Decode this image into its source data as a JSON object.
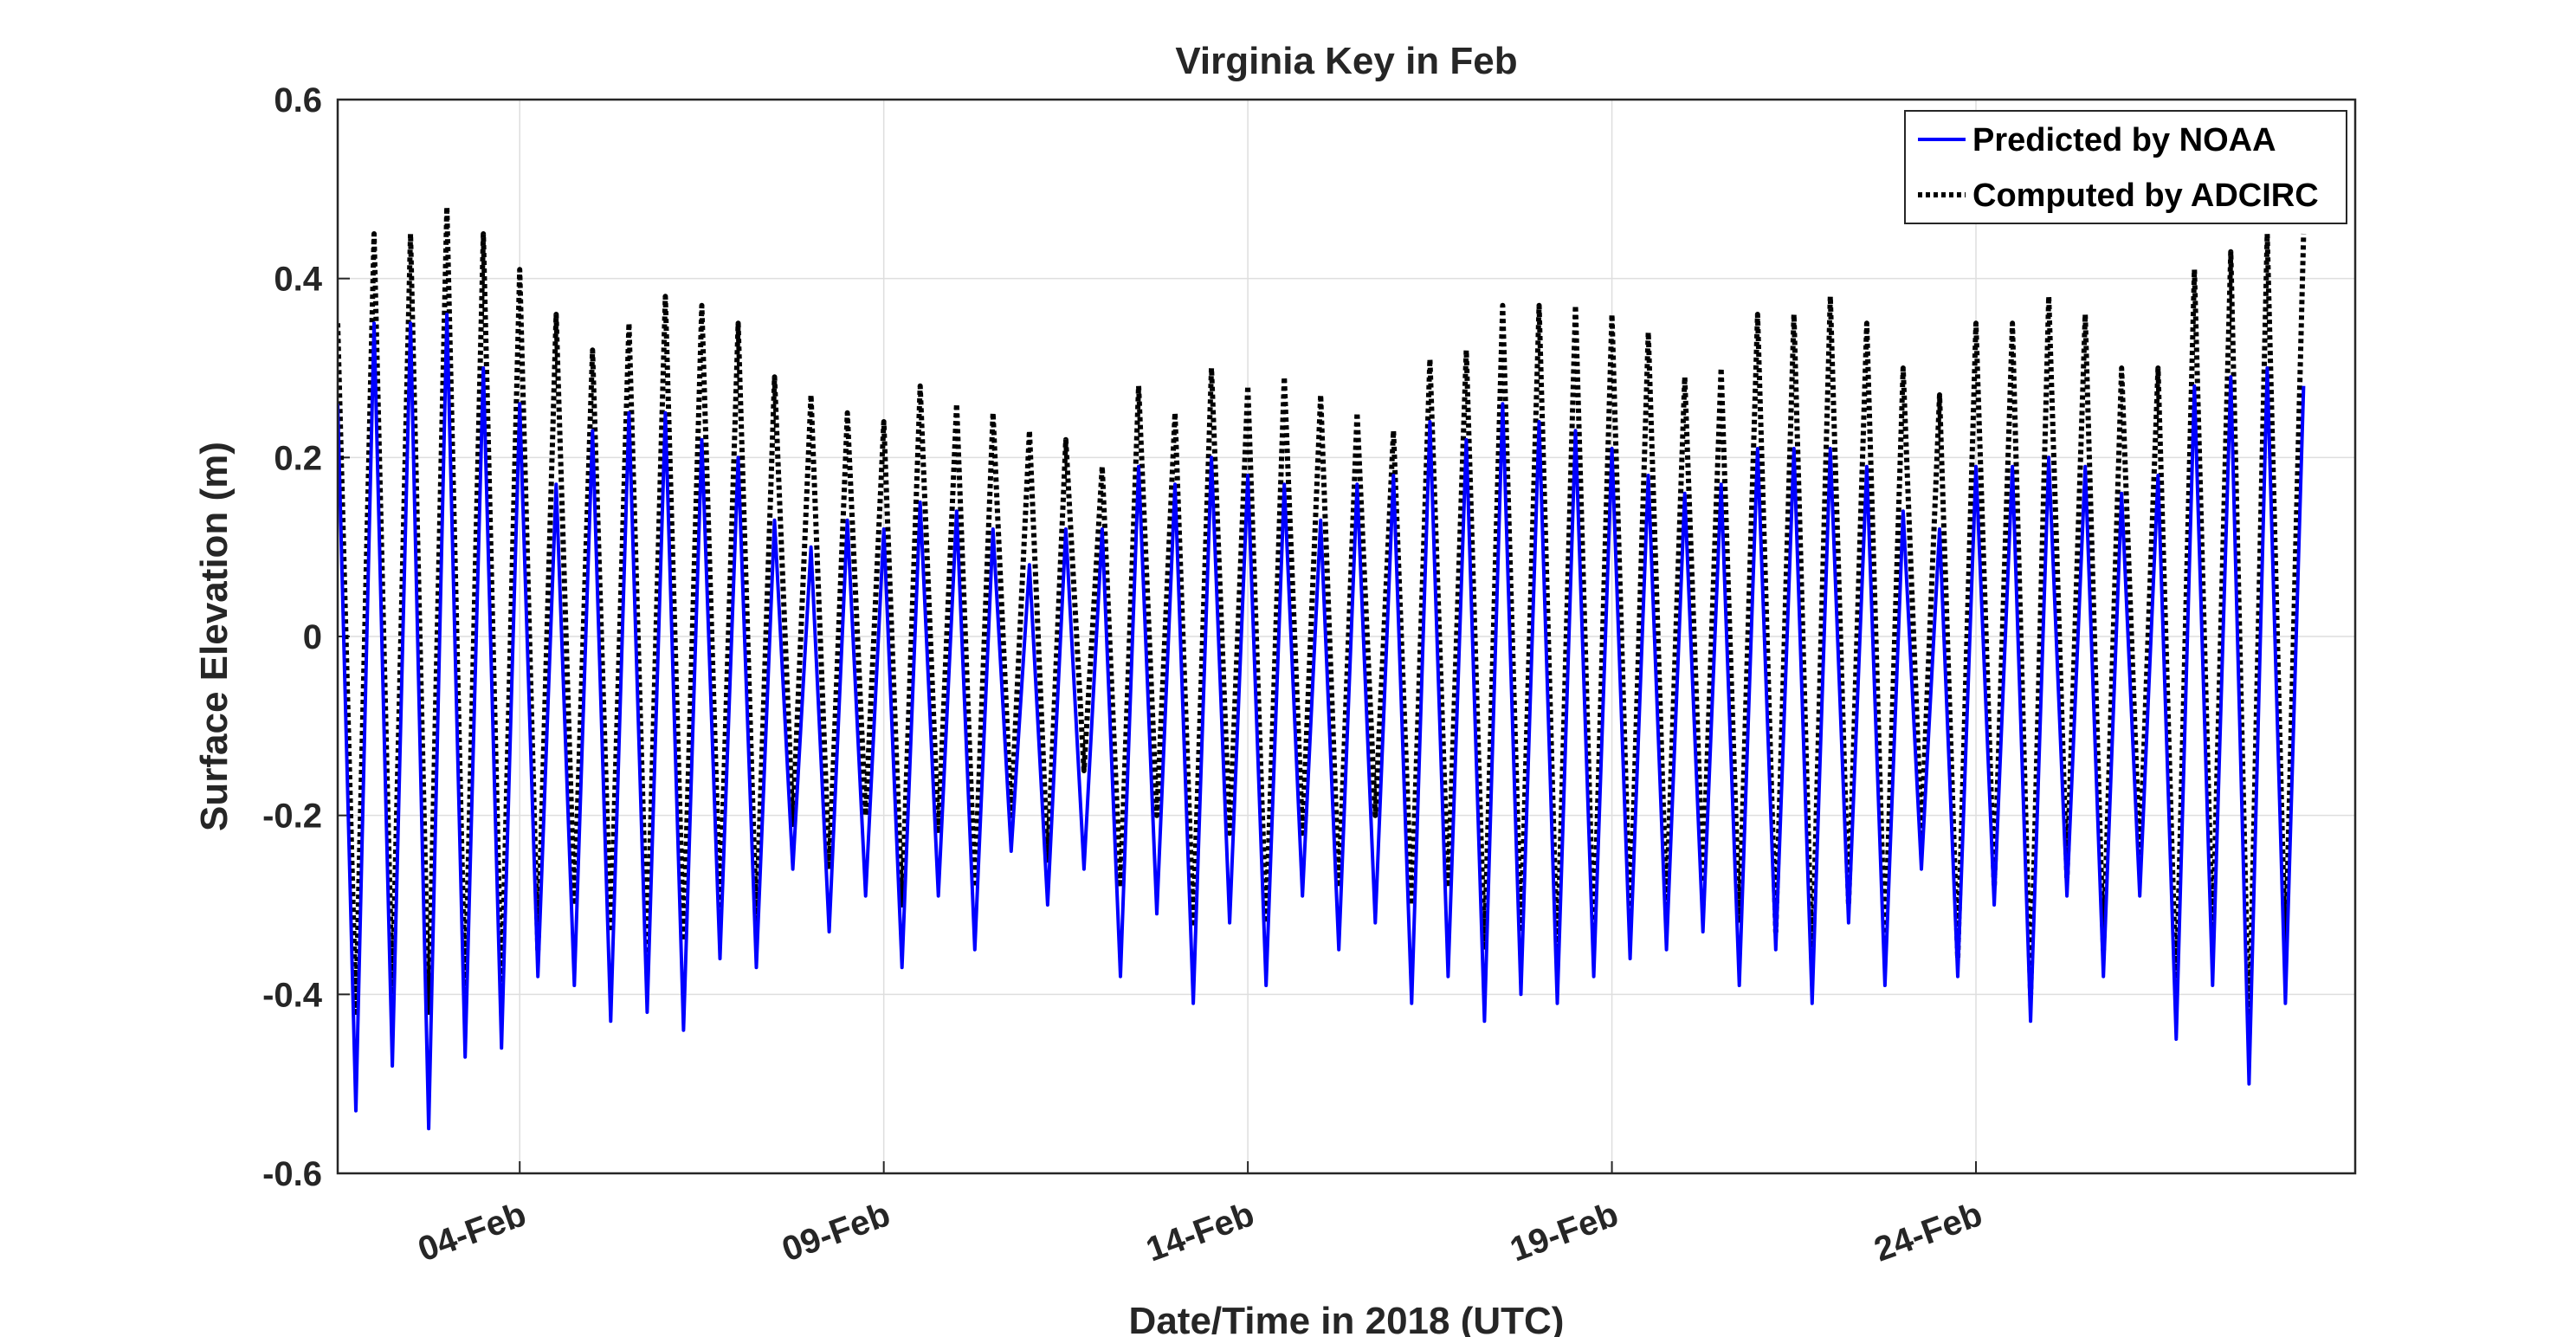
{
  "chart_data": {
    "type": "line",
    "title": "Virginia Key in Feb",
    "xlabel": "Date/Time in 2018 (UTC)",
    "ylabel": "Surface Elevation (m)",
    "xlim": [
      "2018-02-01T12:00",
      "2018-02-29T05:00"
    ],
    "ylim": [
      -0.6,
      0.6
    ],
    "x_ticks": [
      {
        "date": "2018-02-04",
        "label": "04-Feb"
      },
      {
        "date": "2018-02-09",
        "label": "09-Feb"
      },
      {
        "date": "2018-02-14",
        "label": "14-Feb"
      },
      {
        "date": "2018-02-19",
        "label": "19-Feb"
      },
      {
        "date": "2018-02-24",
        "label": "24-Feb"
      }
    ],
    "y_ticks": [
      -0.6,
      -0.4,
      -0.2,
      0,
      0.2,
      0.4,
      0.6
    ],
    "y_tick_labels": [
      "-0.6",
      "-0.4",
      "-0.2",
      "0",
      "0.2",
      "0.4",
      "0.6"
    ],
    "grid": true,
    "legend_position": "top-right",
    "series": [
      {
        "name": "Predicted by NOAA",
        "color": "#0000ff",
        "style": "solid",
        "peaks": [
          [
            "2018-02-01T12:00",
            0.26
          ],
          [
            "2018-02-01T18:00",
            -0.53
          ],
          [
            "2018-02-02T00:00",
            0.35
          ],
          [
            "2018-02-02T06:00",
            -0.48
          ],
          [
            "2018-02-02T12:00",
            0.35
          ],
          [
            "2018-02-02T18:00",
            -0.55
          ],
          [
            "2018-02-03T00:00",
            0.36
          ],
          [
            "2018-02-03T06:00",
            -0.47
          ],
          [
            "2018-02-03T12:00",
            0.3
          ],
          [
            "2018-02-03T18:00",
            -0.46
          ],
          [
            "2018-02-04T00:00",
            0.26
          ],
          [
            "2018-02-04T06:00",
            -0.38
          ],
          [
            "2018-02-04T12:00",
            0.17
          ],
          [
            "2018-02-04T18:00",
            -0.39
          ],
          [
            "2018-02-05T00:00",
            0.23
          ],
          [
            "2018-02-05T06:00",
            -0.43
          ],
          [
            "2018-02-05T12:00",
            0.25
          ],
          [
            "2018-02-05T18:00",
            -0.42
          ],
          [
            "2018-02-06T00:00",
            0.25
          ],
          [
            "2018-02-06T06:00",
            -0.44
          ],
          [
            "2018-02-06T12:00",
            0.22
          ],
          [
            "2018-02-06T18:00",
            -0.36
          ],
          [
            "2018-02-07T00:00",
            0.2
          ],
          [
            "2018-02-07T06:00",
            -0.37
          ],
          [
            "2018-02-07T12:00",
            0.13
          ],
          [
            "2018-02-07T18:00",
            -0.26
          ],
          [
            "2018-02-08T00:00",
            0.1
          ],
          [
            "2018-02-08T06:00",
            -0.33
          ],
          [
            "2018-02-08T12:00",
            0.13
          ],
          [
            "2018-02-08T18:00",
            -0.29
          ],
          [
            "2018-02-09T00:00",
            0.12
          ],
          [
            "2018-02-09T06:00",
            -0.37
          ],
          [
            "2018-02-09T12:00",
            0.15
          ],
          [
            "2018-02-09T18:00",
            -0.29
          ],
          [
            "2018-02-10T00:00",
            0.14
          ],
          [
            "2018-02-10T06:00",
            -0.35
          ],
          [
            "2018-02-10T12:00",
            0.12
          ],
          [
            "2018-02-10T18:00",
            -0.24
          ],
          [
            "2018-02-11T00:00",
            0.08
          ],
          [
            "2018-02-11T06:00",
            -0.3
          ],
          [
            "2018-02-11T12:00",
            0.12
          ],
          [
            "2018-02-11T18:00",
            -0.26
          ],
          [
            "2018-02-12T00:00",
            0.12
          ],
          [
            "2018-02-12T06:00",
            -0.38
          ],
          [
            "2018-02-12T12:00",
            0.19
          ],
          [
            "2018-02-12T18:00",
            -0.31
          ],
          [
            "2018-02-13T00:00",
            0.17
          ],
          [
            "2018-02-13T06:00",
            -0.41
          ],
          [
            "2018-02-13T12:00",
            0.2
          ],
          [
            "2018-02-13T18:00",
            -0.32
          ],
          [
            "2018-02-14T00:00",
            0.18
          ],
          [
            "2018-02-14T06:00",
            -0.39
          ],
          [
            "2018-02-14T12:00",
            0.17
          ],
          [
            "2018-02-14T18:00",
            -0.29
          ],
          [
            "2018-02-15T00:00",
            0.13
          ],
          [
            "2018-02-15T06:00",
            -0.35
          ],
          [
            "2018-02-15T12:00",
            0.17
          ],
          [
            "2018-02-15T18:00",
            -0.32
          ],
          [
            "2018-02-16T00:00",
            0.18
          ],
          [
            "2018-02-16T06:00",
            -0.41
          ],
          [
            "2018-02-16T12:00",
            0.24
          ],
          [
            "2018-02-16T18:00",
            -0.38
          ],
          [
            "2018-02-17T00:00",
            0.22
          ],
          [
            "2018-02-17T06:00",
            -0.43
          ],
          [
            "2018-02-17T12:00",
            0.26
          ],
          [
            "2018-02-17T18:00",
            -0.4
          ],
          [
            "2018-02-18T00:00",
            0.24
          ],
          [
            "2018-02-18T06:00",
            -0.41
          ],
          [
            "2018-02-18T12:00",
            0.23
          ],
          [
            "2018-02-18T18:00",
            -0.38
          ],
          [
            "2018-02-19T00:00",
            0.21
          ],
          [
            "2018-02-19T06:00",
            -0.36
          ],
          [
            "2018-02-19T12:00",
            0.18
          ],
          [
            "2018-02-19T18:00",
            -0.35
          ],
          [
            "2018-02-20T00:00",
            0.16
          ],
          [
            "2018-02-20T06:00",
            -0.33
          ],
          [
            "2018-02-20T12:00",
            0.17
          ],
          [
            "2018-02-20T18:00",
            -0.39
          ],
          [
            "2018-02-21T00:00",
            0.21
          ],
          [
            "2018-02-21T06:00",
            -0.35
          ],
          [
            "2018-02-21T12:00",
            0.21
          ],
          [
            "2018-02-21T18:00",
            -0.41
          ],
          [
            "2018-02-22T00:00",
            0.21
          ],
          [
            "2018-02-22T06:00",
            -0.32
          ],
          [
            "2018-02-22T12:00",
            0.19
          ],
          [
            "2018-02-22T18:00",
            -0.39
          ],
          [
            "2018-02-23T00:00",
            0.14
          ],
          [
            "2018-02-23T06:00",
            -0.26
          ],
          [
            "2018-02-23T12:00",
            0.12
          ],
          [
            "2018-02-23T18:00",
            -0.38
          ],
          [
            "2018-02-24T00:00",
            0.19
          ],
          [
            "2018-02-24T06:00",
            -0.3
          ],
          [
            "2018-02-24T12:00",
            0.19
          ],
          [
            "2018-02-24T18:00",
            -0.43
          ],
          [
            "2018-02-25T00:00",
            0.2
          ],
          [
            "2018-02-25T06:00",
            -0.29
          ],
          [
            "2018-02-25T12:00",
            0.19
          ],
          [
            "2018-02-25T18:00",
            -0.38
          ],
          [
            "2018-02-26T00:00",
            0.16
          ],
          [
            "2018-02-26T06:00",
            -0.29
          ],
          [
            "2018-02-26T12:00",
            0.18
          ],
          [
            "2018-02-26T18:00",
            -0.45
          ],
          [
            "2018-02-27T00:00",
            0.28
          ],
          [
            "2018-02-27T06:00",
            -0.39
          ],
          [
            "2018-02-27T12:00",
            0.29
          ],
          [
            "2018-02-27T18:00",
            -0.5
          ],
          [
            "2018-02-28T00:00",
            0.3
          ],
          [
            "2018-02-28T06:00",
            -0.41
          ],
          [
            "2018-02-28T12:00",
            0.28
          ]
        ]
      },
      {
        "name": "Computed by ADCIRC",
        "color": "#000000",
        "style": "dotted",
        "peaks": [
          [
            "2018-02-01T12:00",
            0.35
          ],
          [
            "2018-02-01T18:00",
            -0.42
          ],
          [
            "2018-02-02T00:00",
            0.45
          ],
          [
            "2018-02-02T06:00",
            -0.4
          ],
          [
            "2018-02-02T12:00",
            0.45
          ],
          [
            "2018-02-02T18:00",
            -0.42
          ],
          [
            "2018-02-03T00:00",
            0.48
          ],
          [
            "2018-02-03T06:00",
            -0.4
          ],
          [
            "2018-02-03T12:00",
            0.45
          ],
          [
            "2018-02-03T18:00",
            -0.4
          ],
          [
            "2018-02-04T00:00",
            0.41
          ],
          [
            "2018-02-04T06:00",
            -0.35
          ],
          [
            "2018-02-04T12:00",
            0.36
          ],
          [
            "2018-02-04T18:00",
            -0.3
          ],
          [
            "2018-02-05T00:00",
            0.32
          ],
          [
            "2018-02-05T06:00",
            -0.33
          ],
          [
            "2018-02-05T12:00",
            0.35
          ],
          [
            "2018-02-05T18:00",
            -0.35
          ],
          [
            "2018-02-06T00:00",
            0.38
          ],
          [
            "2018-02-06T06:00",
            -0.34
          ],
          [
            "2018-02-06T12:00",
            0.37
          ],
          [
            "2018-02-06T18:00",
            -0.3
          ],
          [
            "2018-02-07T00:00",
            0.35
          ],
          [
            "2018-02-07T06:00",
            -0.32
          ],
          [
            "2018-02-07T12:00",
            0.29
          ],
          [
            "2018-02-07T18:00",
            -0.21
          ],
          [
            "2018-02-08T00:00",
            0.27
          ],
          [
            "2018-02-08T06:00",
            -0.26
          ],
          [
            "2018-02-08T12:00",
            0.25
          ],
          [
            "2018-02-08T18:00",
            -0.2
          ],
          [
            "2018-02-09T00:00",
            0.24
          ],
          [
            "2018-02-09T06:00",
            -0.3
          ],
          [
            "2018-02-09T12:00",
            0.28
          ],
          [
            "2018-02-09T18:00",
            -0.22
          ],
          [
            "2018-02-10T00:00",
            0.26
          ],
          [
            "2018-02-10T06:00",
            -0.28
          ],
          [
            "2018-02-10T12:00",
            0.25
          ],
          [
            "2018-02-10T18:00",
            -0.2
          ],
          [
            "2018-02-11T00:00",
            0.23
          ],
          [
            "2018-02-11T06:00",
            -0.25
          ],
          [
            "2018-02-11T12:00",
            0.22
          ],
          [
            "2018-02-11T18:00",
            -0.15
          ],
          [
            "2018-02-12T00:00",
            0.19
          ],
          [
            "2018-02-12T06:00",
            -0.28
          ],
          [
            "2018-02-12T12:00",
            0.28
          ],
          [
            "2018-02-12T18:00",
            -0.2
          ],
          [
            "2018-02-13T00:00",
            0.25
          ],
          [
            "2018-02-13T06:00",
            -0.32
          ],
          [
            "2018-02-13T12:00",
            0.3
          ],
          [
            "2018-02-13T18:00",
            -0.22
          ],
          [
            "2018-02-14T00:00",
            0.28
          ],
          [
            "2018-02-14T06:00",
            -0.32
          ],
          [
            "2018-02-14T12:00",
            0.29
          ],
          [
            "2018-02-14T18:00",
            -0.22
          ],
          [
            "2018-02-15T00:00",
            0.27
          ],
          [
            "2018-02-15T06:00",
            -0.28
          ],
          [
            "2018-02-15T12:00",
            0.25
          ],
          [
            "2018-02-15T18:00",
            -0.2
          ],
          [
            "2018-02-16T00:00",
            0.23
          ],
          [
            "2018-02-16T06:00",
            -0.3
          ],
          [
            "2018-02-16T12:00",
            0.31
          ],
          [
            "2018-02-16T18:00",
            -0.28
          ],
          [
            "2018-02-17T00:00",
            0.32
          ],
          [
            "2018-02-17T06:00",
            -0.35
          ],
          [
            "2018-02-17T12:00",
            0.37
          ],
          [
            "2018-02-17T18:00",
            -0.33
          ],
          [
            "2018-02-18T00:00",
            0.37
          ],
          [
            "2018-02-18T06:00",
            -0.36
          ],
          [
            "2018-02-18T12:00",
            0.37
          ],
          [
            "2018-02-18T18:00",
            -0.34
          ],
          [
            "2018-02-19T00:00",
            0.36
          ],
          [
            "2018-02-19T06:00",
            -0.32
          ],
          [
            "2018-02-19T12:00",
            0.34
          ],
          [
            "2018-02-19T18:00",
            -0.3
          ],
          [
            "2018-02-20T00:00",
            0.29
          ],
          [
            "2018-02-20T06:00",
            -0.27
          ],
          [
            "2018-02-20T12:00",
            0.3
          ],
          [
            "2018-02-20T18:00",
            -0.32
          ],
          [
            "2018-02-21T00:00",
            0.36
          ],
          [
            "2018-02-21T06:00",
            -0.33
          ],
          [
            "2018-02-21T12:00",
            0.36
          ],
          [
            "2018-02-21T18:00",
            -0.37
          ],
          [
            "2018-02-22T00:00",
            0.38
          ],
          [
            "2018-02-22T06:00",
            -0.3
          ],
          [
            "2018-02-22T12:00",
            0.35
          ],
          [
            "2018-02-22T18:00",
            -0.35
          ],
          [
            "2018-02-23T00:00",
            0.3
          ],
          [
            "2018-02-23T06:00",
            -0.22
          ],
          [
            "2018-02-23T12:00",
            0.27
          ],
          [
            "2018-02-23T18:00",
            -0.36
          ],
          [
            "2018-02-24T00:00",
            0.35
          ],
          [
            "2018-02-24T06:00",
            -0.28
          ],
          [
            "2018-02-24T12:00",
            0.35
          ],
          [
            "2018-02-24T18:00",
            -0.4
          ],
          [
            "2018-02-25T00:00",
            0.38
          ],
          [
            "2018-02-25T06:00",
            -0.27
          ],
          [
            "2018-02-25T12:00",
            0.36
          ],
          [
            "2018-02-25T18:00",
            -0.35
          ],
          [
            "2018-02-26T00:00",
            0.3
          ],
          [
            "2018-02-26T06:00",
            -0.25
          ],
          [
            "2018-02-26T12:00",
            0.3
          ],
          [
            "2018-02-26T18:00",
            -0.4
          ],
          [
            "2018-02-27T00:00",
            0.41
          ],
          [
            "2018-02-27T06:00",
            -0.34
          ],
          [
            "2018-02-27T12:00",
            0.43
          ],
          [
            "2018-02-27T18:00",
            -0.45
          ],
          [
            "2018-02-28T00:00",
            0.45
          ],
          [
            "2018-02-28T06:00",
            -0.36
          ],
          [
            "2018-02-28T12:00",
            0.45
          ]
        ]
      }
    ]
  }
}
